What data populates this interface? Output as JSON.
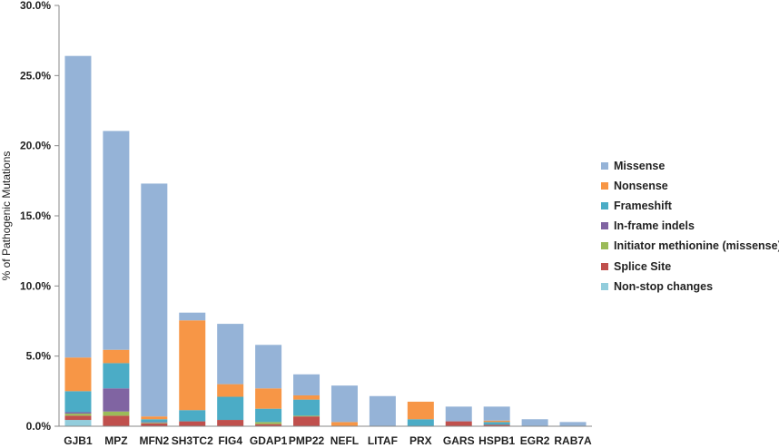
{
  "chart_data": {
    "type": "bar",
    "stacked": true,
    "title": "",
    "xlabel": "",
    "ylabel": "% of Pathogenic Mutations",
    "ylim": [
      0,
      30
    ],
    "y_ticks": [
      "0.0%",
      "5.0%",
      "10.0%",
      "15.0%",
      "20.0%",
      "25.0%",
      "30.0%"
    ],
    "grid": false,
    "legend_position": "right",
    "categories": [
      "GJB1",
      "MPZ",
      "MFN2",
      "SH3TC2",
      "FIG4",
      "GDAP1",
      "PMP22",
      "NEFL",
      "LITAF",
      "PRX",
      "GARS",
      "HSPB1",
      "EGR2",
      "RAB7A"
    ],
    "series": [
      {
        "name": "Non-stop changes",
        "color": "#92cddc",
        "values": [
          0.45,
          0,
          0,
          0,
          0,
          0,
          0,
          0,
          0,
          0,
          0,
          0,
          0,
          0
        ]
      },
      {
        "name": "Splice Site",
        "color": "#c0504d",
        "values": [
          0.3,
          0.75,
          0.2,
          0.35,
          0.45,
          0.15,
          0.7,
          0,
          0,
          0,
          0.35,
          0.1,
          0,
          0
        ]
      },
      {
        "name": "Initiator methionine (missense)",
        "color": "#9bbb59",
        "values": [
          0.15,
          0.3,
          0.05,
          0,
          0,
          0.15,
          0.05,
          0,
          0,
          0,
          0,
          0,
          0,
          0
        ]
      },
      {
        "name": "In-frame indels",
        "color": "#8064a2",
        "values": [
          0.1,
          1.65,
          0.05,
          0,
          0,
          0,
          0,
          0,
          0,
          0,
          0,
          0,
          0,
          0
        ]
      },
      {
        "name": "Frameshift",
        "color": "#4bacc6",
        "values": [
          1.5,
          1.8,
          0.2,
          0.8,
          1.65,
          0.95,
          1.15,
          0,
          0,
          0.5,
          0,
          0.2,
          0,
          0
        ]
      },
      {
        "name": "Nonsense",
        "color": "#f79646",
        "values": [
          2.4,
          0.95,
          0.2,
          6.4,
          0.9,
          1.45,
          0.3,
          0.3,
          0,
          1.25,
          0,
          0.1,
          0,
          0
        ]
      },
      {
        "name": "Missense",
        "color": "#95b3d7",
        "values": [
          21.5,
          15.6,
          16.6,
          0.55,
          4.3,
          3.1,
          1.5,
          2.6,
          2.15,
          0,
          1.05,
          1.0,
          0.5,
          0.3
        ]
      }
    ],
    "legend_order": [
      "Missense",
      "Nonsense",
      "Frameshift",
      "In-frame indels",
      "Initiator methionine (missense)",
      "Splice Site",
      "Non-stop changes"
    ]
  }
}
